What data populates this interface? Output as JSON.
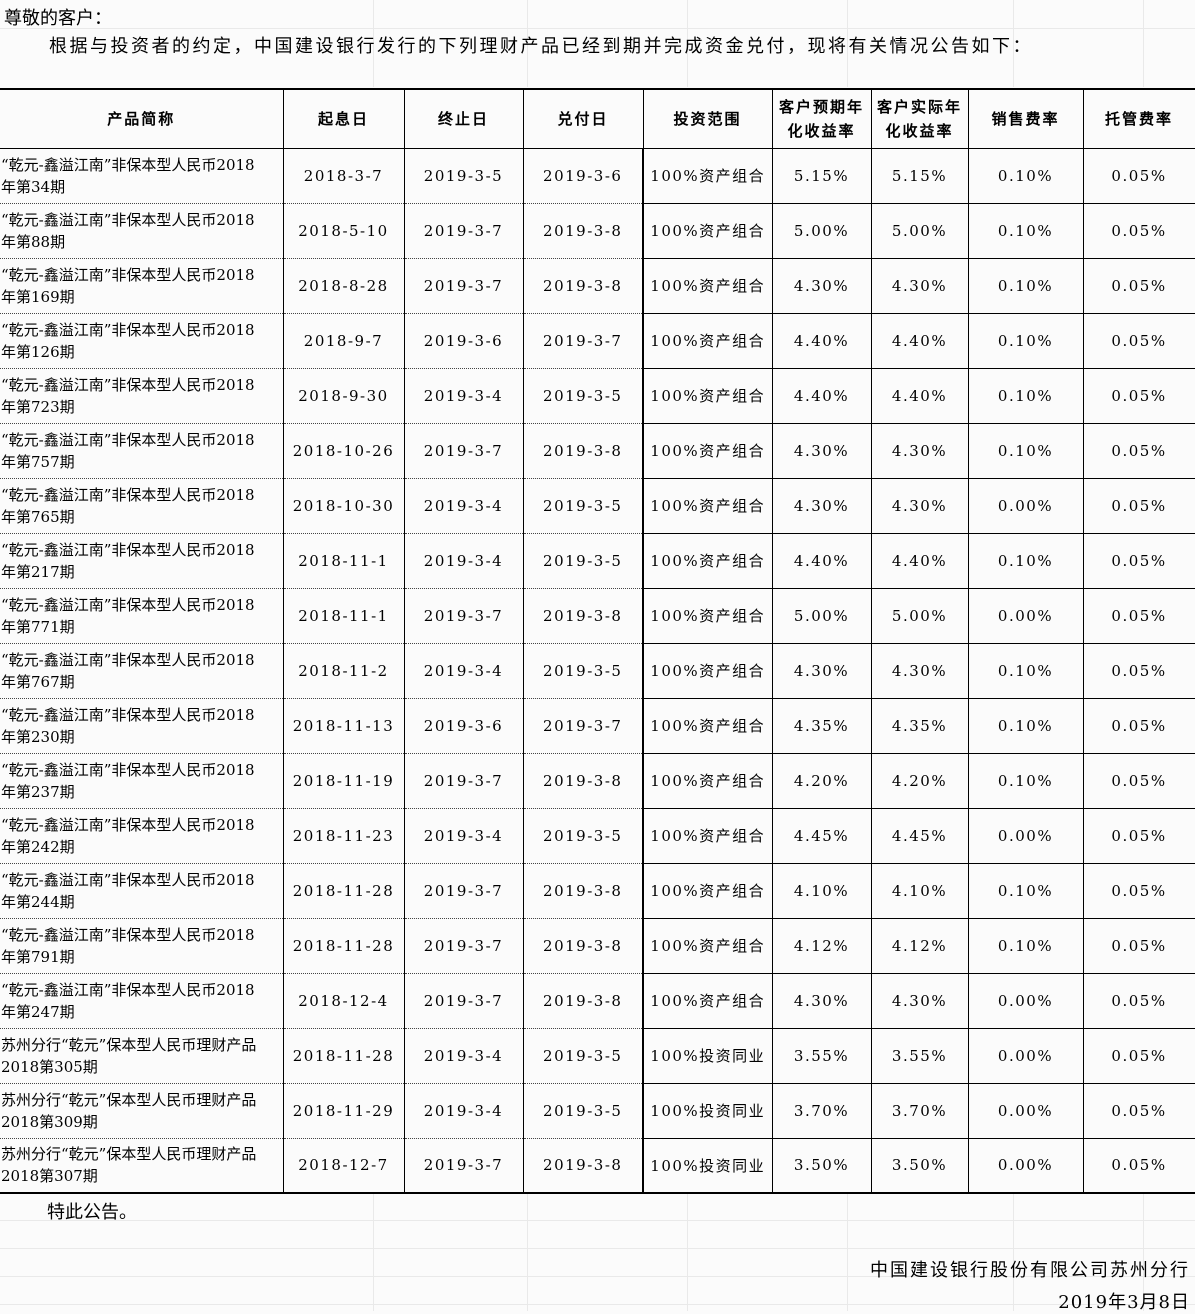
{
  "document": {
    "salutation": "尊敬的客户：",
    "intro": "根据与投资者的约定，中国建设银行发行的下列理财产品已经到期并完成资金兑付，现将有关情况公告如下：",
    "closing": "特此公告。",
    "issuer": "中国建设银行股份有限公司苏州分行",
    "issue_date": "2019年3月8日"
  },
  "table": {
    "columns": [
      "产品简称",
      "起息日",
      "终止日",
      "兑付日",
      "投资范围",
      "客户预期年\n化收益率",
      "客户实际年\n化收益率",
      "销售费率",
      "托管费率"
    ],
    "rows": [
      [
        "“乾元-鑫溢江南”非保本型人民币2018\n年第34期",
        "2018-3-7",
        "2019-3-5",
        "2019-3-6",
        "100%资产组合",
        "5.15%",
        "5.15%",
        "0.10%",
        "0.05%"
      ],
      [
        "“乾元-鑫溢江南”非保本型人民币2018\n年第88期",
        "2018-5-10",
        "2019-3-7",
        "2019-3-8",
        "100%资产组合",
        "5.00%",
        "5.00%",
        "0.10%",
        "0.05%"
      ],
      [
        "“乾元-鑫溢江南”非保本型人民币2018\n年第169期",
        "2018-8-28",
        "2019-3-7",
        "2019-3-8",
        "100%资产组合",
        "4.30%",
        "4.30%",
        "0.10%",
        "0.05%"
      ],
      [
        "“乾元-鑫溢江南”非保本型人民币2018\n年第126期",
        "2018-9-7",
        "2019-3-6",
        "2019-3-7",
        "100%资产组合",
        "4.40%",
        "4.40%",
        "0.10%",
        "0.05%"
      ],
      [
        "“乾元-鑫溢江南”非保本型人民币2018\n年第723期",
        "2018-9-30",
        "2019-3-4",
        "2019-3-5",
        "100%资产组合",
        "4.40%",
        "4.40%",
        "0.10%",
        "0.05%"
      ],
      [
        "“乾元-鑫溢江南”非保本型人民币2018\n年第757期",
        "2018-10-26",
        "2019-3-7",
        "2019-3-8",
        "100%资产组合",
        "4.30%",
        "4.30%",
        "0.10%",
        "0.05%"
      ],
      [
        "“乾元-鑫溢江南”非保本型人民币2018\n年第765期",
        "2018-10-30",
        "2019-3-4",
        "2019-3-5",
        "100%资产组合",
        "4.30%",
        "4.30%",
        "0.00%",
        "0.05%"
      ],
      [
        "“乾元-鑫溢江南”非保本型人民币2018\n年第217期",
        "2018-11-1",
        "2019-3-4",
        "2019-3-5",
        "100%资产组合",
        "4.40%",
        "4.40%",
        "0.10%",
        "0.05%"
      ],
      [
        "“乾元-鑫溢江南”非保本型人民币2018\n年第771期",
        "2018-11-1",
        "2019-3-7",
        "2019-3-8",
        "100%资产组合",
        "5.00%",
        "5.00%",
        "0.00%",
        "0.05%"
      ],
      [
        "“乾元-鑫溢江南”非保本型人民币2018\n年第767期",
        "2018-11-2",
        "2019-3-4",
        "2019-3-5",
        "100%资产组合",
        "4.30%",
        "4.30%",
        "0.10%",
        "0.05%"
      ],
      [
        "“乾元-鑫溢江南”非保本型人民币2018\n年第230期",
        "2018-11-13",
        "2019-3-6",
        "2019-3-7",
        "100%资产组合",
        "4.35%",
        "4.35%",
        "0.10%",
        "0.05%"
      ],
      [
        "“乾元-鑫溢江南”非保本型人民币2018\n年第237期",
        "2018-11-19",
        "2019-3-7",
        "2019-3-8",
        "100%资产组合",
        "4.20%",
        "4.20%",
        "0.10%",
        "0.05%"
      ],
      [
        "“乾元-鑫溢江南”非保本型人民币2018\n年第242期",
        "2018-11-23",
        "2019-3-4",
        "2019-3-5",
        "100%资产组合",
        "4.45%",
        "4.45%",
        "0.00%",
        "0.05%"
      ],
      [
        "“乾元-鑫溢江南”非保本型人民币2018\n年第244期",
        "2018-11-28",
        "2019-3-7",
        "2019-3-8",
        "100%资产组合",
        "4.10%",
        "4.10%",
        "0.10%",
        "0.05%"
      ],
      [
        "“乾元-鑫溢江南”非保本型人民币2018\n年第791期",
        "2018-11-28",
        "2019-3-7",
        "2019-3-8",
        "100%资产组合",
        "4.12%",
        "4.12%",
        "0.10%",
        "0.05%"
      ],
      [
        "“乾元-鑫溢江南”非保本型人民币2018\n年第247期",
        "2018-12-4",
        "2019-3-7",
        "2019-3-8",
        "100%资产组合",
        "4.30%",
        "4.30%",
        "0.00%",
        "0.05%"
      ],
      [
        "苏州分行“乾元”保本型人民币理财产品\n2018第305期",
        "2018-11-28",
        "2019-3-4",
        "2019-3-5",
        "100%投资同业",
        "3.55%",
        "3.55%",
        "0.00%",
        "0.05%"
      ],
      [
        "苏州分行“乾元”保本型人民币理财产品\n2018第309期",
        "2018-11-29",
        "2019-3-4",
        "2019-3-5",
        "100%投资同业",
        "3.70%",
        "3.70%",
        "0.00%",
        "0.05%"
      ],
      [
        "苏州分行“乾元”保本型人民币理财产品\n2018第307期",
        "2018-12-7",
        "2019-3-7",
        "2019-3-8",
        "100%投资同业",
        "3.50%",
        "3.50%",
        "0.00%",
        "0.05%"
      ]
    ]
  },
  "colors": {
    "background": "#fbfbfb",
    "text": "#000000",
    "table_border": "#000000",
    "faint_grid": "#e9e9e9"
  }
}
